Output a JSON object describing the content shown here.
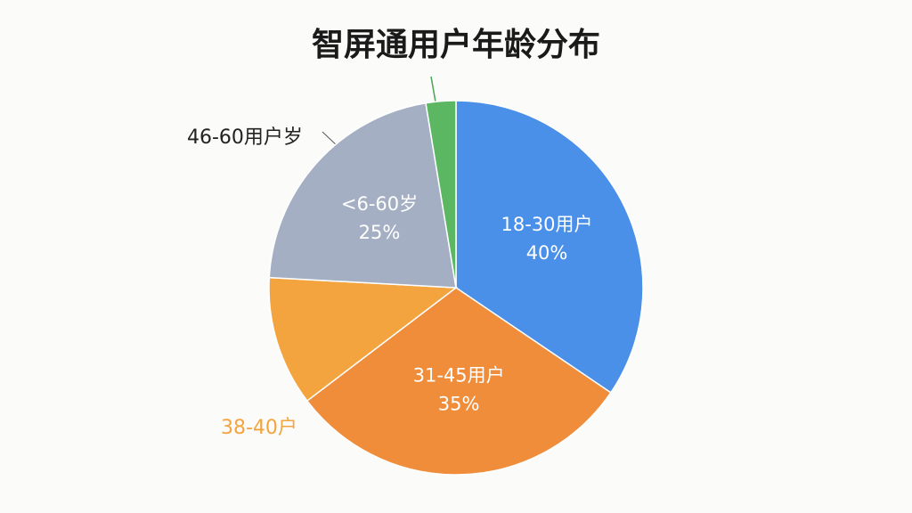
{
  "chart_data": {
    "type": "pie",
    "title": "智屏通用户年龄分布",
    "categories": [
      "18-30用户",
      "31-45用户",
      "38-40户",
      "<6-60岁",
      null
    ],
    "values": [
      40,
      35,
      13,
      25,
      3
    ],
    "value_labels": [
      "40%",
      "35%",
      null,
      "25%",
      null
    ],
    "colors": [
      "#4a8fe8",
      "#ef8d3b",
      "#f4a43f",
      "#a4afc3",
      "#5bb761"
    ],
    "annotations": [
      {
        "text": "46-60用户岁"
      }
    ]
  }
}
